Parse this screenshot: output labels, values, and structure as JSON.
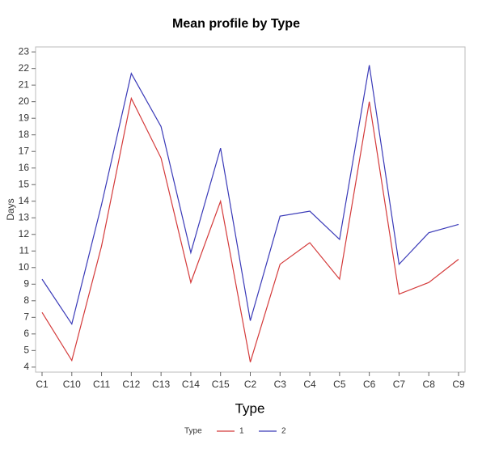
{
  "chart_data": {
    "type": "line",
    "title": "Mean profile by Type",
    "xlabel": "Type",
    "ylabel": "Days",
    "legend_title": "Type",
    "categories": [
      "C1",
      "C10",
      "C11",
      "C12",
      "C13",
      "C14",
      "C15",
      "C2",
      "C3",
      "C4",
      "C5",
      "C6",
      "C7",
      "C8",
      "C9"
    ],
    "series": [
      {
        "name": "1",
        "color": "#d43a3a",
        "values": [
          7.3,
          4.4,
          11.3,
          20.2,
          16.6,
          9.1,
          14.0,
          4.3,
          10.2,
          11.5,
          9.3,
          20.0,
          8.4,
          9.1,
          10.5
        ]
      },
      {
        "name": "2",
        "color": "#3a3ab8",
        "values": [
          9.3,
          6.6,
          13.8,
          21.7,
          18.5,
          10.9,
          17.2,
          6.8,
          13.1,
          13.4,
          11.7,
          22.2,
          10.2,
          12.1,
          12.6
        ]
      }
    ],
    "ylim": [
      3.7,
      23.3
    ],
    "yticks": [
      4,
      5,
      6,
      7,
      8,
      9,
      10,
      11,
      12,
      13,
      14,
      15,
      16,
      17,
      18,
      19,
      20,
      21,
      22,
      23
    ],
    "legend": "bottom"
  }
}
